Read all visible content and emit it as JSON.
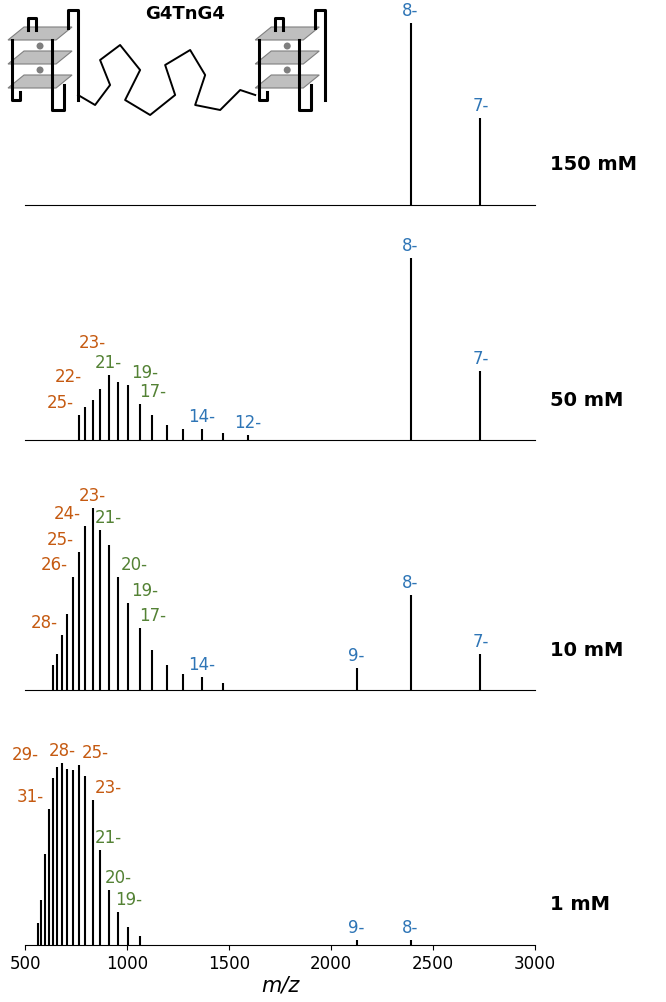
{
  "chart_data": [
    {
      "type": "spectrum",
      "title": "150 mM",
      "inset_label": "G4TnG4",
      "x": [
        2390,
        2732
      ],
      "values": [
        100,
        48
      ],
      "xlim": [
        500,
        3000
      ],
      "ylim": [
        0,
        110
      ],
      "tick_labels": false,
      "annotations": [
        {
          "x": 2390,
          "text": "8-",
          "color": "#2e75b6"
        },
        {
          "x": 2732,
          "text": "7-",
          "color": "#2e75b6"
        }
      ]
    },
    {
      "type": "spectrum",
      "title": "50 mM",
      "x": [
        764,
        796,
        831,
        869,
        910,
        956,
        1006,
        1062,
        1124,
        1195,
        1274,
        1366,
        1471,
        1593,
        2390,
        2732
      ],
      "values": [
        14,
        18,
        22,
        28,
        36,
        32,
        30,
        20,
        14,
        8,
        6,
        6,
        4,
        3,
        100,
        38
      ],
      "xlim": [
        500,
        3000
      ],
      "ylim": [
        0,
        110
      ],
      "tick_labels": false,
      "annotations": [
        {
          "x": 764,
          "text": "25-",
          "color": "#c55a11"
        },
        {
          "x": 831,
          "text": "23-",
          "color": "#c55a11"
        },
        {
          "x": 869,
          "text": "22-",
          "color": "#c55a11"
        },
        {
          "x": 910,
          "text": "21-",
          "color": "#548235"
        },
        {
          "x": 1006,
          "text": "19-",
          "color": "#548235"
        },
        {
          "x": 1124,
          "text": "17-",
          "color": "#548235"
        },
        {
          "x": 1366,
          "text": "14-",
          "color": "#2e75b6"
        },
        {
          "x": 1593,
          "text": "12-",
          "color": "#2e75b6"
        },
        {
          "x": 2390,
          "text": "8-",
          "color": "#2e75b6"
        },
        {
          "x": 2732,
          "text": "7-",
          "color": "#2e75b6"
        }
      ]
    },
    {
      "type": "spectrum",
      "title": "10 mM",
      "x": [
        637,
        659,
        682,
        707,
        735,
        764,
        796,
        831,
        869,
        910,
        956,
        1006,
        1062,
        1124,
        1195,
        1274,
        1366,
        1471,
        2125,
        2390,
        2732
      ],
      "values": [
        14,
        20,
        30,
        42,
        62,
        76,
        90,
        100,
        88,
        80,
        62,
        48,
        34,
        22,
        14,
        9,
        7,
        4,
        12,
        52,
        20
      ],
      "xlim": [
        500,
        3000
      ],
      "ylim": [
        0,
        110
      ],
      "tick_labels": false,
      "annotations": [
        {
          "x": 682,
          "text": "28-",
          "color": "#c55a11"
        },
        {
          "x": 735,
          "text": "26-",
          "color": "#c55a11"
        },
        {
          "x": 764,
          "text": "25-",
          "color": "#c55a11"
        },
        {
          "x": 796,
          "text": "24-",
          "color": "#c55a11"
        },
        {
          "x": 831,
          "text": "23-",
          "color": "#c55a11"
        },
        {
          "x": 910,
          "text": "21-",
          "color": "#548235"
        },
        {
          "x": 956,
          "text": "20-",
          "color": "#548235"
        },
        {
          "x": 1006,
          "text": "19-",
          "color": "#548235"
        },
        {
          "x": 1124,
          "text": "17-",
          "color": "#548235"
        },
        {
          "x": 1366,
          "text": "14-",
          "color": "#2e75b6"
        },
        {
          "x": 2125,
          "text": "9-",
          "color": "#2e75b6"
        },
        {
          "x": 2390,
          "text": "8-",
          "color": "#2e75b6"
        },
        {
          "x": 2732,
          "text": "7-",
          "color": "#2e75b6"
        }
      ]
    },
    {
      "type": "spectrum",
      "title": "1 mM",
      "x_label": "m/z",
      "x": [
        562,
        579,
        597,
        616,
        637,
        659,
        682,
        707,
        735,
        764,
        796,
        831,
        869,
        910,
        956,
        1006,
        1062,
        2125,
        2390
      ],
      "values": [
        12,
        25,
        50,
        75,
        92,
        98,
        100,
        97,
        96,
        99,
        93,
        80,
        52,
        30,
        18,
        10,
        5,
        3,
        3
      ],
      "xlim": [
        500,
        3000
      ],
      "xticks": [
        500,
        1000,
        1500,
        2000,
        2500,
        3000
      ],
      "ylim": [
        0,
        110
      ],
      "tick_labels": "x",
      "annotations": [
        {
          "x": 616,
          "text": "31-",
          "color": "#c55a11"
        },
        {
          "x": 659,
          "text": "29-",
          "color": "#c55a11"
        },
        {
          "x": 682,
          "text": "28-",
          "color": "#c55a11"
        },
        {
          "x": 764,
          "text": "25-",
          "color": "#c55a11"
        },
        {
          "x": 831,
          "text": "23-",
          "color": "#c55a11"
        },
        {
          "x": 910,
          "text": "21-",
          "color": "#548235"
        },
        {
          "x": 956,
          "text": "20-",
          "color": "#548235"
        },
        {
          "x": 1006,
          "text": "19-",
          "color": "#548235"
        },
        {
          "x": 2125,
          "text": "9-",
          "color": "#2e75b6"
        },
        {
          "x": 2390,
          "text": "8-",
          "color": "#2e75b6"
        }
      ]
    }
  ]
}
